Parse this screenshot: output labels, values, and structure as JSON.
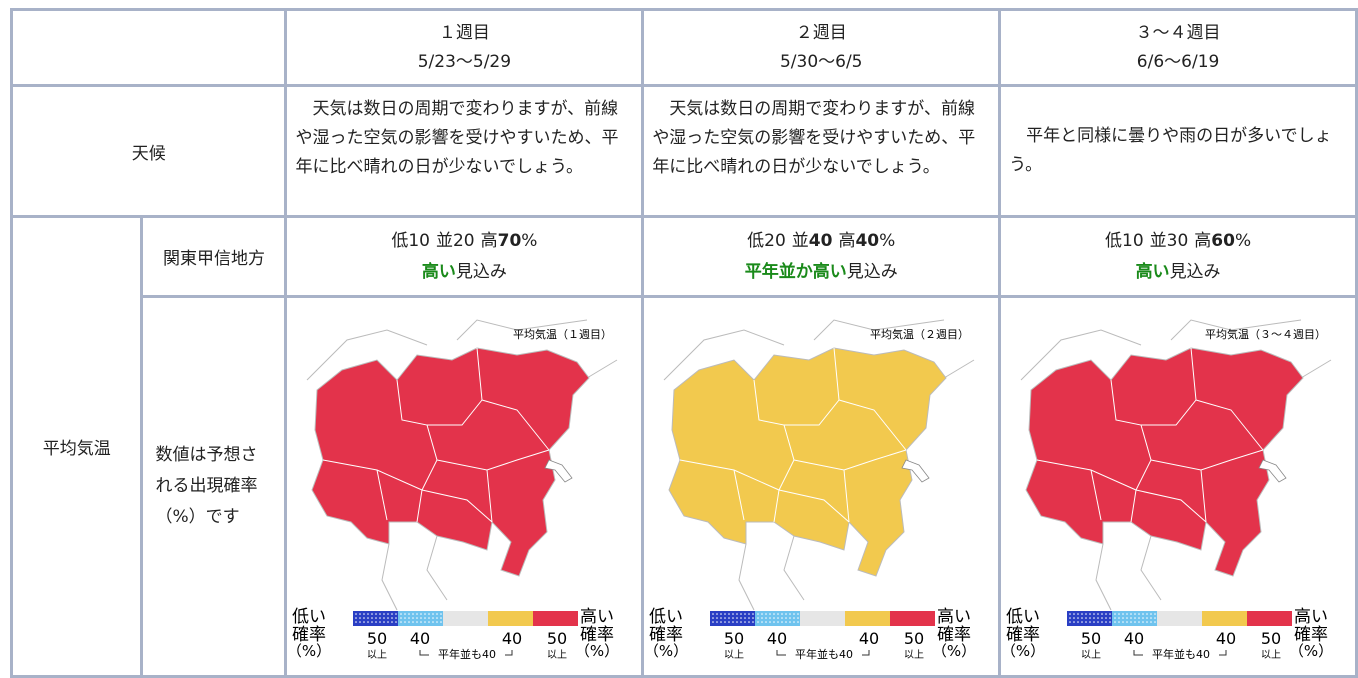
{
  "columns": [
    {
      "week": "１週目",
      "dates": "5/23〜5/29"
    },
    {
      "week": "２週目",
      "dates": "5/30〜6/5"
    },
    {
      "week": "３〜４週目",
      "dates": "6/6〜6/19"
    }
  ],
  "weather": {
    "label": "天候",
    "texts": [
      "天気は数日の周期で変わりますが、前線や湿った空気の影響を受けやすいため、平年に比べ晴れの日が少ないでしょう。",
      "天気は数日の周期で変わりますが、前線や湿った空気の影響を受けやすいため、平年に比べ晴れの日が少ないでしょう。",
      "平年と同様に曇りや雨の日が多いでしょう。"
    ]
  },
  "temperature": {
    "label": "平均気温",
    "region": "関東甲信地方",
    "note": "数値は予想される出現確率（%）です",
    "forecasts": [
      {
        "low": "低10",
        "normal": "並20",
        "high_prefix": "高",
        "high": "70",
        "unit": "%",
        "outlook_emph": "高い",
        "outlook_rest": "見込み"
      },
      {
        "low": "低20",
        "normal_prefix": "並",
        "normal": "40",
        "high_prefix": "高",
        "high": "40",
        "unit": "%",
        "outlook_emph": "平年並か高い",
        "outlook_rest": "見込み"
      },
      {
        "low": "低10",
        "normal": "並30",
        "high_prefix": "高",
        "high": "60",
        "unit": "%",
        "outlook_emph": "高い",
        "outlook_rest": "見込み"
      }
    ]
  },
  "maps": [
    {
      "title": "平均気温（１週目）",
      "color": "#e3334b"
    },
    {
      "title": "平均気温（２週目）",
      "color": "#f2c94e"
    },
    {
      "title": "平均気温（３〜４週目）",
      "color": "#e3334b"
    }
  ],
  "legend": {
    "low": "低い",
    "high": "高い",
    "prob": "確率",
    "unit": "（%）",
    "fifty": "50",
    "above": "以上",
    "forty": "40",
    "normal_note": "平年並も40",
    "colors": [
      "#2a3fc4",
      "#6fc3ee",
      "#e6e6e6",
      "#f2c94e",
      "#e3334b"
    ]
  }
}
